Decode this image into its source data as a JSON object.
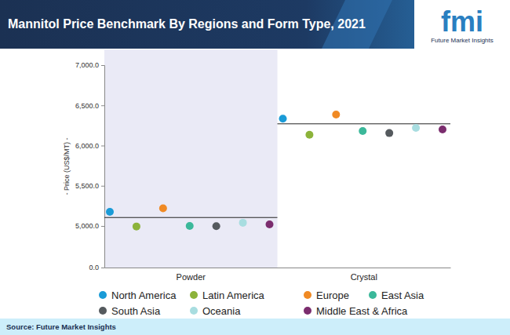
{
  "chart_data": {
    "type": "scatter",
    "title": "Mannitol Price Benchmark By Regions and Form Type, 2021",
    "y_label": "- Price (US$/MT) -",
    "categories": [
      "Powder",
      "Crystal"
    ],
    "series": [
      {
        "name": "North America",
        "color": "#1a9bd7",
        "values": [
          5175,
          6335
        ]
      },
      {
        "name": "Latin America",
        "color": "#8cb33a",
        "values": [
          4940,
          6135
        ]
      },
      {
        "name": "Europe",
        "color": "#f08a24",
        "values": [
          5220,
          6385
        ]
      },
      {
        "name": "East Asia",
        "color": "#3bb89a",
        "values": [
          5000,
          6180
        ]
      },
      {
        "name": "South Asia",
        "color": "#555a5e",
        "values": [
          4970,
          6155
        ]
      },
      {
        "name": "Oceania",
        "color": "#a8dde0",
        "values": [
          5040,
          6220
        ]
      },
      {
        "name": "Middle East & Africa",
        "color": "#7b2d6e",
        "values": [
          5020,
          6200
        ]
      }
    ],
    "averages": [
      5105,
      6270
    ],
    "ylim": [
      0,
      7000
    ],
    "yticks": [
      {
        "value": 0,
        "label": "0.0"
      },
      {
        "value": 5000,
        "label": "5,000.0"
      },
      {
        "value": 5500,
        "label": "5,500.0"
      },
      {
        "value": 6000,
        "label": "6,000.0"
      },
      {
        "value": 6500,
        "label": "6,500.0"
      },
      {
        "value": 7000,
        "label": "7,000.0"
      }
    ],
    "marker": "circle",
    "legend": "bottom",
    "source": "Source: Future Market Insights",
    "logo": "fmi",
    "logo_subtitle": "Future Market Insights"
  }
}
